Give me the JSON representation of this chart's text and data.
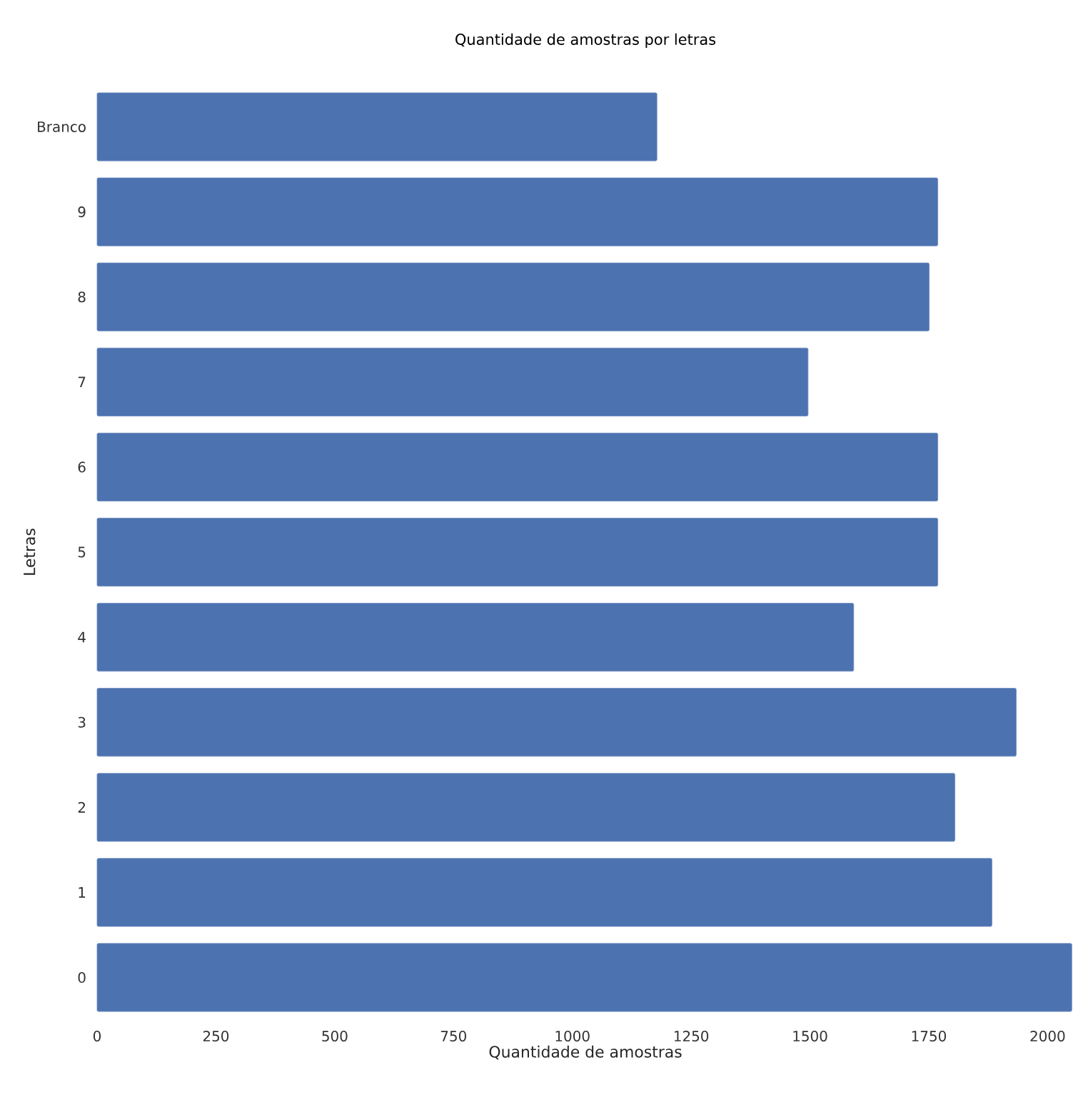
{
  "chart_data": {
    "type": "bar",
    "orientation": "horizontal",
    "title": "Quantidade de amostras por letras",
    "xlabel": "Quantidade de amostras",
    "ylabel": "Letras",
    "categories": [
      "Branco",
      "9",
      "8",
      "7",
      "6",
      "5",
      "4",
      "3",
      "2",
      "1",
      "0"
    ],
    "values": [
      1178,
      1769,
      1751,
      1496,
      1769,
      1769,
      1592,
      1934,
      1805,
      1883,
      2051
    ],
    "color": "#4c72b0",
    "xlim": [
      0,
      2055
    ],
    "xticks": [
      0,
      250,
      500,
      750,
      1000,
      1250,
      1500,
      1750,
      2000
    ]
  }
}
